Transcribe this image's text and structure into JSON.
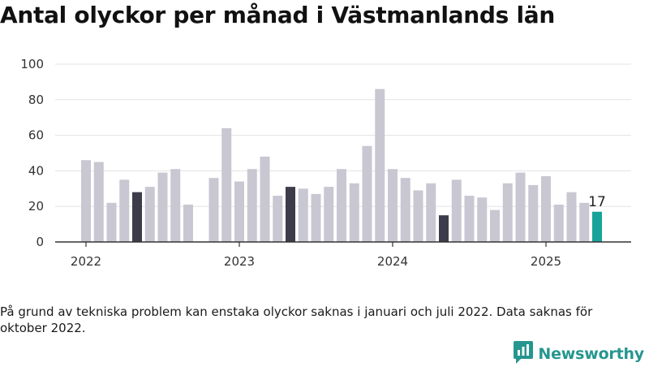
{
  "title": "Antal olyckor per månad i Västmanlands län",
  "note": "På grund av tekniska problem kan enstaka olyckor saknas i januari och juli 2022. Data saknas för oktober 2022.",
  "brand": {
    "name": "Newsworthy",
    "logo_icon": "newsworthy-logo-icon"
  },
  "colors": {
    "default": "#c9c7d2",
    "july": "#3c3c4a",
    "latest": "#17a39a",
    "axis": "#333333",
    "grid": "#e3e3e3"
  },
  "chart_data": {
    "type": "bar",
    "title": "Antal olyckor per månad i Västmanlands län",
    "xlabel": "",
    "ylabel": "",
    "ylim": [
      0,
      100
    ],
    "yticks": [
      0,
      20,
      40,
      60,
      80,
      100
    ],
    "xticks": [
      "2022",
      "2023",
      "2024",
      "2025"
    ],
    "grid": true,
    "categories": [
      "2022-01",
      "2022-02",
      "2022-03",
      "2022-04",
      "2022-05",
      "2022-06",
      "2022-07",
      "2022-08",
      "2022-09",
      "2022-10",
      "2022-11",
      "2022-12",
      "2023-01",
      "2023-02",
      "2023-03",
      "2023-04",
      "2023-05",
      "2023-06",
      "2023-07",
      "2023-08",
      "2023-09",
      "2023-10",
      "2023-11",
      "2023-12",
      "2024-01",
      "2024-02",
      "2024-03",
      "2024-04",
      "2024-05",
      "2024-06",
      "2024-07",
      "2024-08",
      "2024-09",
      "2024-10",
      "2024-11",
      "2024-12",
      "2025-01",
      "2025-02",
      "2025-03",
      "2025-04",
      "2025-05",
      "2025-06",
      "2025-07"
    ],
    "values": [
      46,
      45,
      22,
      35,
      28,
      31,
      39,
      41,
      21,
      null,
      36,
      64,
      34,
      41,
      48,
      26,
      31,
      30,
      27,
      31,
      41,
      33,
      54,
      86,
      41,
      36,
      29,
      33,
      15,
      35,
      26,
      25,
      18,
      33,
      39,
      32,
      37,
      21,
      28,
      22,
      17,
      null,
      null
    ],
    "highlight": {
      "july": [
        "2022-05",
        "2023-05",
        "2024-05"
      ],
      "latest": "2025-05"
    },
    "data_labels": [
      {
        "category": "2025-05",
        "text": "17"
      }
    ]
  }
}
